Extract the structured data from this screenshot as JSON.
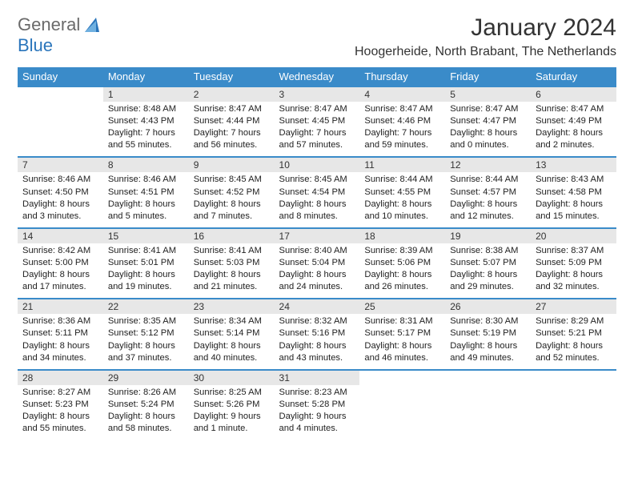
{
  "logo": {
    "text1": "General",
    "text2": "Blue"
  },
  "title": "January 2024",
  "location": "Hoogerheide, North Brabant, The Netherlands",
  "colors": {
    "header_bg": "#3a8bc9",
    "header_text": "#ffffff",
    "daynum_bg": "#e7e7e7",
    "border": "#3a8bc9",
    "logo_gray": "#6a6a6a",
    "logo_blue": "#2a75bb"
  },
  "weekdays": [
    "Sunday",
    "Monday",
    "Tuesday",
    "Wednesday",
    "Thursday",
    "Friday",
    "Saturday"
  ],
  "weeks": [
    {
      "nums": [
        "",
        "1",
        "2",
        "3",
        "4",
        "5",
        "6"
      ],
      "cells": [
        {
          "sunrise": "",
          "sunset": "",
          "daylight": ""
        },
        {
          "sunrise": "Sunrise: 8:48 AM",
          "sunset": "Sunset: 4:43 PM",
          "daylight": "Daylight: 7 hours and 55 minutes."
        },
        {
          "sunrise": "Sunrise: 8:47 AM",
          "sunset": "Sunset: 4:44 PM",
          "daylight": "Daylight: 7 hours and 56 minutes."
        },
        {
          "sunrise": "Sunrise: 8:47 AM",
          "sunset": "Sunset: 4:45 PM",
          "daylight": "Daylight: 7 hours and 57 minutes."
        },
        {
          "sunrise": "Sunrise: 8:47 AM",
          "sunset": "Sunset: 4:46 PM",
          "daylight": "Daylight: 7 hours and 59 minutes."
        },
        {
          "sunrise": "Sunrise: 8:47 AM",
          "sunset": "Sunset: 4:47 PM",
          "daylight": "Daylight: 8 hours and 0 minutes."
        },
        {
          "sunrise": "Sunrise: 8:47 AM",
          "sunset": "Sunset: 4:49 PM",
          "daylight": "Daylight: 8 hours and 2 minutes."
        }
      ]
    },
    {
      "nums": [
        "7",
        "8",
        "9",
        "10",
        "11",
        "12",
        "13"
      ],
      "cells": [
        {
          "sunrise": "Sunrise: 8:46 AM",
          "sunset": "Sunset: 4:50 PM",
          "daylight": "Daylight: 8 hours and 3 minutes."
        },
        {
          "sunrise": "Sunrise: 8:46 AM",
          "sunset": "Sunset: 4:51 PM",
          "daylight": "Daylight: 8 hours and 5 minutes."
        },
        {
          "sunrise": "Sunrise: 8:45 AM",
          "sunset": "Sunset: 4:52 PM",
          "daylight": "Daylight: 8 hours and 7 minutes."
        },
        {
          "sunrise": "Sunrise: 8:45 AM",
          "sunset": "Sunset: 4:54 PM",
          "daylight": "Daylight: 8 hours and 8 minutes."
        },
        {
          "sunrise": "Sunrise: 8:44 AM",
          "sunset": "Sunset: 4:55 PM",
          "daylight": "Daylight: 8 hours and 10 minutes."
        },
        {
          "sunrise": "Sunrise: 8:44 AM",
          "sunset": "Sunset: 4:57 PM",
          "daylight": "Daylight: 8 hours and 12 minutes."
        },
        {
          "sunrise": "Sunrise: 8:43 AM",
          "sunset": "Sunset: 4:58 PM",
          "daylight": "Daylight: 8 hours and 15 minutes."
        }
      ]
    },
    {
      "nums": [
        "14",
        "15",
        "16",
        "17",
        "18",
        "19",
        "20"
      ],
      "cells": [
        {
          "sunrise": "Sunrise: 8:42 AM",
          "sunset": "Sunset: 5:00 PM",
          "daylight": "Daylight: 8 hours and 17 minutes."
        },
        {
          "sunrise": "Sunrise: 8:41 AM",
          "sunset": "Sunset: 5:01 PM",
          "daylight": "Daylight: 8 hours and 19 minutes."
        },
        {
          "sunrise": "Sunrise: 8:41 AM",
          "sunset": "Sunset: 5:03 PM",
          "daylight": "Daylight: 8 hours and 21 minutes."
        },
        {
          "sunrise": "Sunrise: 8:40 AM",
          "sunset": "Sunset: 5:04 PM",
          "daylight": "Daylight: 8 hours and 24 minutes."
        },
        {
          "sunrise": "Sunrise: 8:39 AM",
          "sunset": "Sunset: 5:06 PM",
          "daylight": "Daylight: 8 hours and 26 minutes."
        },
        {
          "sunrise": "Sunrise: 8:38 AM",
          "sunset": "Sunset: 5:07 PM",
          "daylight": "Daylight: 8 hours and 29 minutes."
        },
        {
          "sunrise": "Sunrise: 8:37 AM",
          "sunset": "Sunset: 5:09 PM",
          "daylight": "Daylight: 8 hours and 32 minutes."
        }
      ]
    },
    {
      "nums": [
        "21",
        "22",
        "23",
        "24",
        "25",
        "26",
        "27"
      ],
      "cells": [
        {
          "sunrise": "Sunrise: 8:36 AM",
          "sunset": "Sunset: 5:11 PM",
          "daylight": "Daylight: 8 hours and 34 minutes."
        },
        {
          "sunrise": "Sunrise: 8:35 AM",
          "sunset": "Sunset: 5:12 PM",
          "daylight": "Daylight: 8 hours and 37 minutes."
        },
        {
          "sunrise": "Sunrise: 8:34 AM",
          "sunset": "Sunset: 5:14 PM",
          "daylight": "Daylight: 8 hours and 40 minutes."
        },
        {
          "sunrise": "Sunrise: 8:32 AM",
          "sunset": "Sunset: 5:16 PM",
          "daylight": "Daylight: 8 hours and 43 minutes."
        },
        {
          "sunrise": "Sunrise: 8:31 AM",
          "sunset": "Sunset: 5:17 PM",
          "daylight": "Daylight: 8 hours and 46 minutes."
        },
        {
          "sunrise": "Sunrise: 8:30 AM",
          "sunset": "Sunset: 5:19 PM",
          "daylight": "Daylight: 8 hours and 49 minutes."
        },
        {
          "sunrise": "Sunrise: 8:29 AM",
          "sunset": "Sunset: 5:21 PM",
          "daylight": "Daylight: 8 hours and 52 minutes."
        }
      ]
    },
    {
      "nums": [
        "28",
        "29",
        "30",
        "31",
        "",
        "",
        ""
      ],
      "cells": [
        {
          "sunrise": "Sunrise: 8:27 AM",
          "sunset": "Sunset: 5:23 PM",
          "daylight": "Daylight: 8 hours and 55 minutes."
        },
        {
          "sunrise": "Sunrise: 8:26 AM",
          "sunset": "Sunset: 5:24 PM",
          "daylight": "Daylight: 8 hours and 58 minutes."
        },
        {
          "sunrise": "Sunrise: 8:25 AM",
          "sunset": "Sunset: 5:26 PM",
          "daylight": "Daylight: 9 hours and 1 minute."
        },
        {
          "sunrise": "Sunrise: 8:23 AM",
          "sunset": "Sunset: 5:28 PM",
          "daylight": "Daylight: 9 hours and 4 minutes."
        },
        {
          "sunrise": "",
          "sunset": "",
          "daylight": ""
        },
        {
          "sunrise": "",
          "sunset": "",
          "daylight": ""
        },
        {
          "sunrise": "",
          "sunset": "",
          "daylight": ""
        }
      ]
    }
  ]
}
